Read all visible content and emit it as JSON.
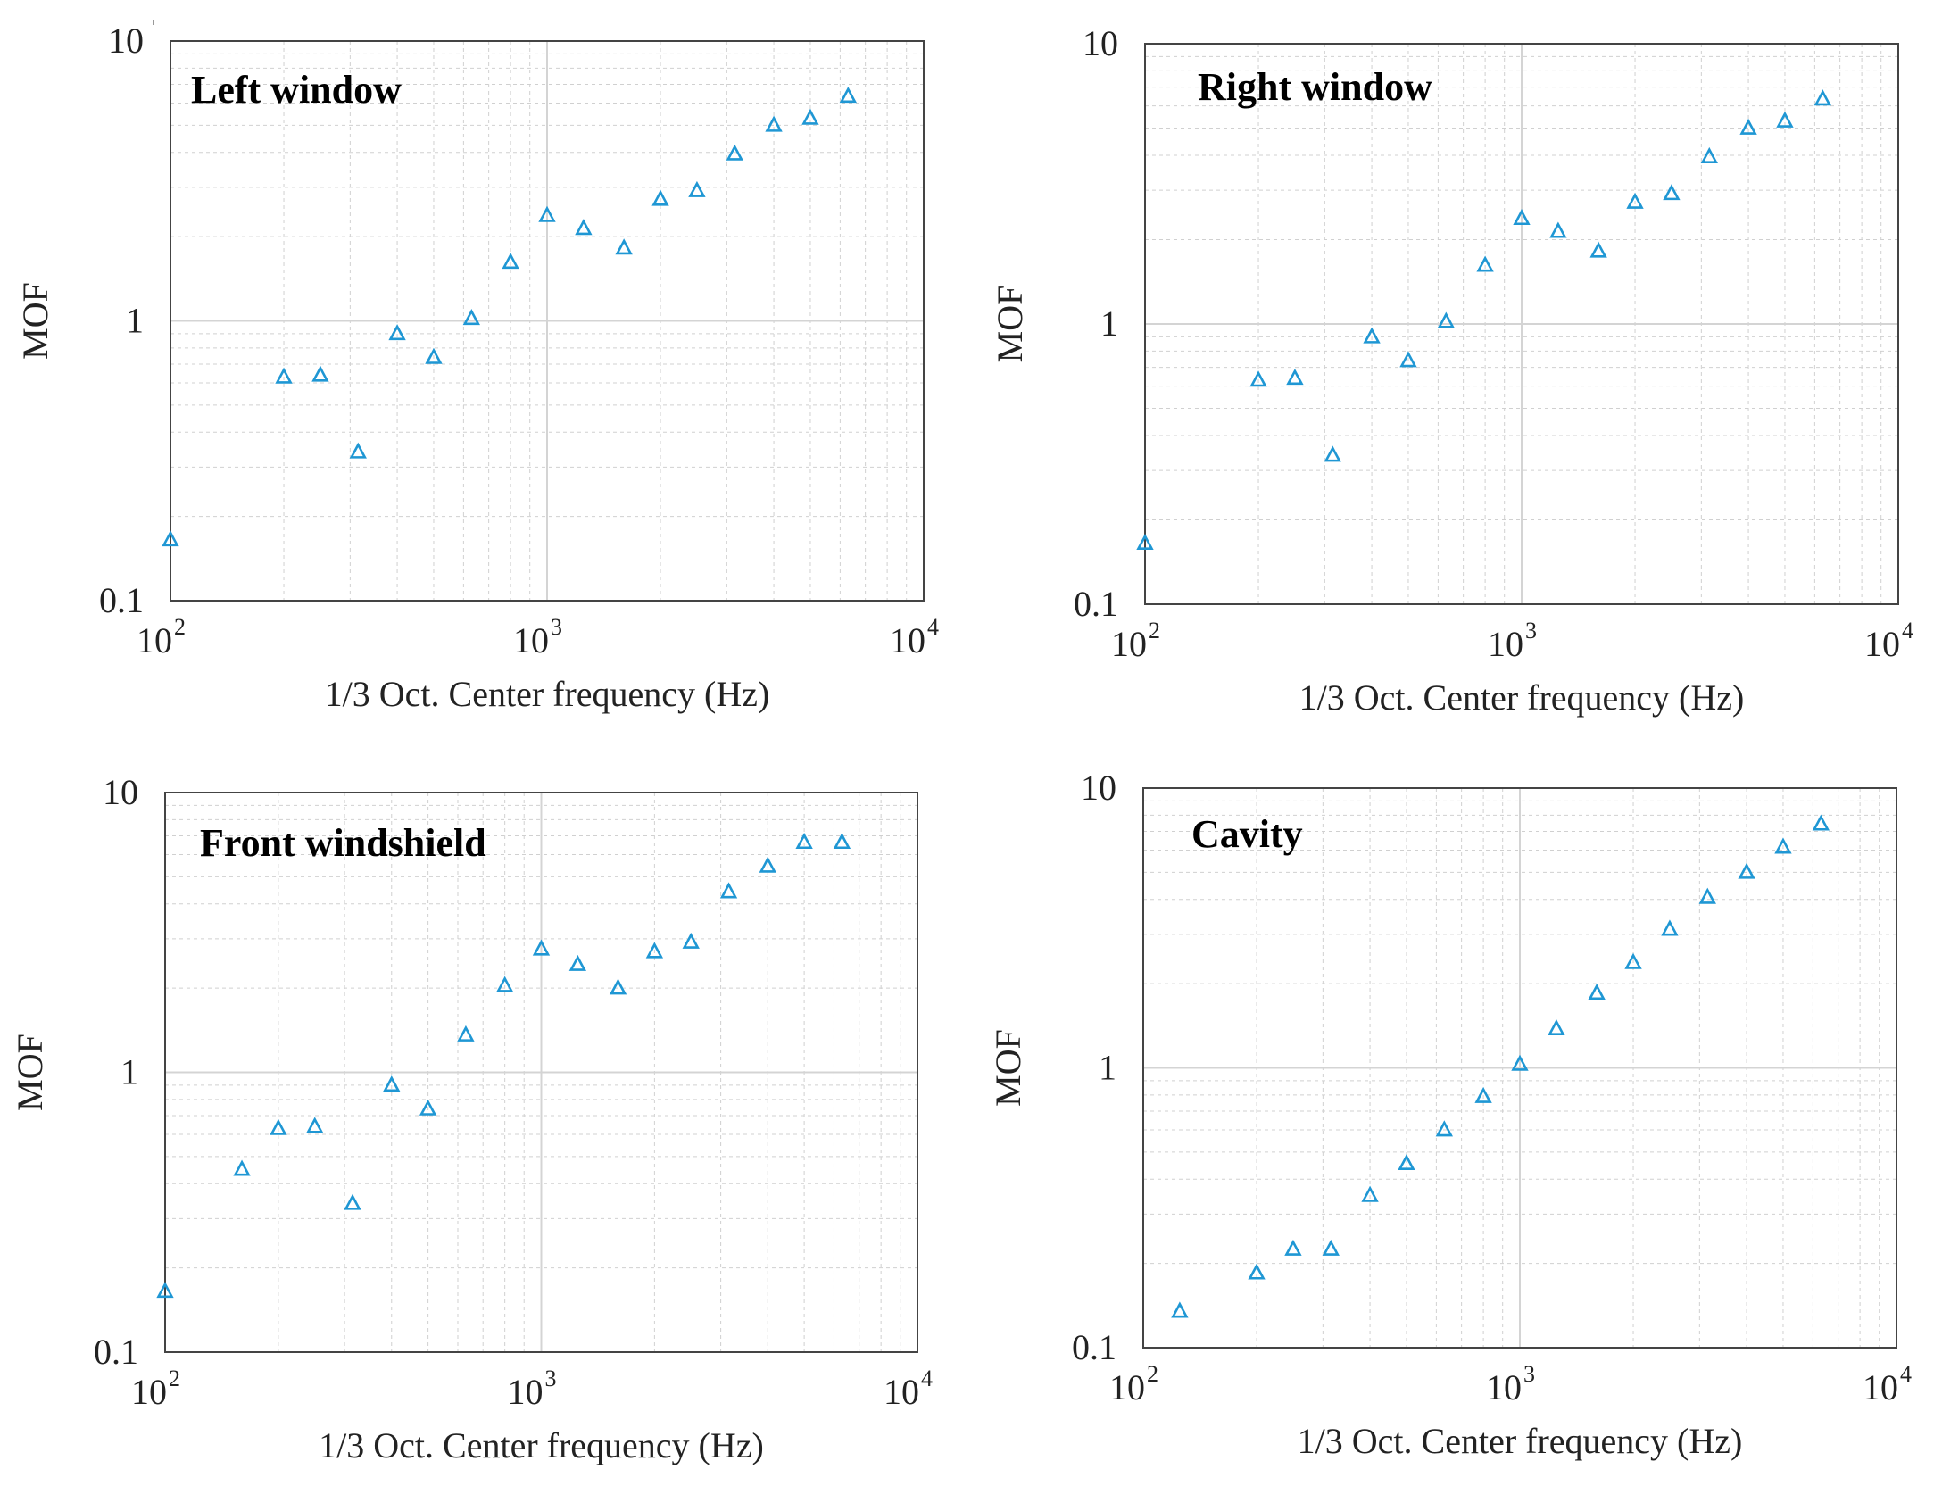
{
  "chart_data": [
    {
      "type": "scatter",
      "title": "Left window",
      "xlabel": "1/3 Oct. Center frequency (Hz)",
      "ylabel": "MOF",
      "xscale": "log",
      "yscale": "log",
      "xlim": [
        100,
        10000
      ],
      "ylim": [
        0.1,
        10
      ],
      "xticks": [
        {
          "base": "10",
          "exp": "2"
        },
        {
          "base": "10",
          "exp": "3"
        },
        {
          "base": "10",
          "exp": "4"
        }
      ],
      "yticks": [
        "0.1",
        "1",
        "10"
      ],
      "grid": true,
      "marker": "triangle-open",
      "color": "#1f97d4",
      "x": [
        100,
        200,
        250,
        315,
        400,
        500,
        630,
        800,
        1000,
        1250,
        1600,
        2000,
        2500,
        3150,
        4000,
        5000,
        6300
      ],
      "y": [
        0.165,
        0.63,
        0.64,
        0.34,
        0.9,
        0.74,
        1.02,
        1.62,
        2.38,
        2.14,
        1.82,
        2.72,
        2.92,
        3.95,
        5.0,
        5.3,
        6.35
      ]
    },
    {
      "type": "scatter",
      "title": "Right window",
      "xlabel": "1/3 Oct. Center frequency (Hz)",
      "ylabel": "MOF",
      "xscale": "log",
      "yscale": "log",
      "xlim": [
        100,
        10000
      ],
      "ylim": [
        0.1,
        10
      ],
      "xticks": [
        {
          "base": "10",
          "exp": "2"
        },
        {
          "base": "10",
          "exp": "3"
        },
        {
          "base": "10",
          "exp": "4"
        }
      ],
      "yticks": [
        "0.1",
        "1",
        "10"
      ],
      "grid": true,
      "marker": "triangle-open",
      "color": "#1f97d4",
      "x": [
        100,
        200,
        250,
        315,
        400,
        500,
        630,
        800,
        1000,
        1250,
        1600,
        2000,
        2500,
        3150,
        4000,
        5000,
        6300
      ],
      "y": [
        0.165,
        0.63,
        0.64,
        0.34,
        0.9,
        0.74,
        1.02,
        1.62,
        2.38,
        2.14,
        1.82,
        2.72,
        2.92,
        3.95,
        5.0,
        5.3,
        6.35
      ]
    },
    {
      "type": "scatter",
      "title": "Front windshield",
      "xlabel": "1/3 Oct. Center frequency (Hz)",
      "ylabel": "MOF",
      "xscale": "log",
      "yscale": "log",
      "xlim": [
        100,
        10000
      ],
      "ylim": [
        0.1,
        10
      ],
      "xticks": [
        {
          "base": "10",
          "exp": "2"
        },
        {
          "base": "10",
          "exp": "3"
        },
        {
          "base": "10",
          "exp": "4"
        }
      ],
      "yticks": [
        "0.1",
        "1",
        "10"
      ],
      "grid": true,
      "marker": "triangle-open",
      "color": "#1f97d4",
      "x": [
        100,
        160,
        200,
        250,
        315,
        400,
        500,
        630,
        800,
        1000,
        1250,
        1600,
        2000,
        2500,
        3150,
        4000,
        5000,
        6300
      ],
      "y": [
        0.165,
        0.45,
        0.63,
        0.64,
        0.34,
        0.9,
        0.74,
        1.36,
        2.04,
        2.76,
        2.43,
        2.0,
        2.7,
        2.92,
        4.42,
        5.46,
        6.64,
        6.64
      ]
    },
    {
      "type": "scatter",
      "title": "Cavity",
      "xlabel": "1/3 Oct. Center frequency (Hz)",
      "ylabel": "MOF",
      "xscale": "log",
      "yscale": "log",
      "xlim": [
        100,
        10000
      ],
      "ylim": [
        0.1,
        10
      ],
      "xticks": [
        {
          "base": "10",
          "exp": "2"
        },
        {
          "base": "10",
          "exp": "3"
        },
        {
          "base": "10",
          "exp": "4"
        }
      ],
      "yticks": [
        "0.1",
        "1",
        "10"
      ],
      "grid": true,
      "marker": "triangle-open",
      "color": "#1f97d4",
      "x": [
        125,
        200,
        250,
        315,
        400,
        500,
        630,
        800,
        1000,
        1250,
        1600,
        2000,
        2500,
        3150,
        4000,
        5000,
        6300
      ],
      "y": [
        0.135,
        0.185,
        0.225,
        0.225,
        0.35,
        0.455,
        0.6,
        0.79,
        1.03,
        1.38,
        1.85,
        2.38,
        3.13,
        4.07,
        5.0,
        6.15,
        7.44
      ]
    }
  ]
}
